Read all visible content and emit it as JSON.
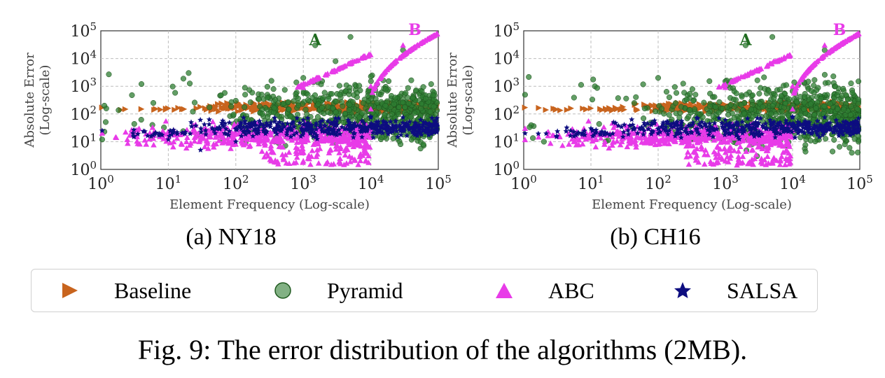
{
  "chart_data": [
    {
      "type": "scatter",
      "panel_caption": "(a) NY18",
      "xlabel": "Element Frequency (Log-scale)",
      "ylabel_line1": "Absolute Error",
      "ylabel_line2": "(Log-scale)",
      "xscale": "log",
      "yscale": "log",
      "xlim": [
        1,
        100000
      ],
      "ylim": [
        1,
        100000
      ],
      "xticks": [
        "10^0",
        "10^1",
        "10^2",
        "10^3",
        "10^4",
        "10^5"
      ],
      "yticks": [
        "10^0",
        "10^1",
        "10^2",
        "10^3",
        "10^4",
        "10^5"
      ],
      "grid": true,
      "annotations": [
        {
          "text": "A",
          "x": 1500,
          "y": 30000,
          "color": "#1f6b1f"
        },
        {
          "text": "B",
          "x": 45000,
          "y": 70000,
          "color": "#e83be8"
        }
      ],
      "series": [
        {
          "name": "Baseline",
          "points": [
            [
              1,
              170
            ],
            [
              2,
              140
            ],
            [
              4,
              150
            ],
            [
              10,
              160
            ],
            [
              30,
              180
            ],
            [
              100,
              170
            ],
            [
              300,
              190
            ],
            [
              1000,
              200
            ],
            [
              3000,
              210
            ],
            [
              10000,
              220
            ],
            [
              30000,
              200
            ],
            [
              90000,
              210
            ]
          ]
        },
        {
          "name": "Pyramid",
          "points": [
            [
              1,
              12
            ],
            [
              4,
              1200
            ],
            [
              6,
              250
            ],
            [
              20,
              3000
            ],
            [
              100,
              300
            ],
            [
              1000,
              2000
            ],
            [
              1500,
              30000
            ],
            [
              3000,
              8000
            ],
            [
              5000,
              60000
            ],
            [
              10000,
              200
            ],
            [
              30000,
              20000
            ],
            [
              60000,
              8
            ]
          ]
        },
        {
          "name": "ABC",
          "points": [
            [
              1,
              20
            ],
            [
              10,
              15
            ],
            [
              100,
              8
            ],
            [
              300,
              3
            ],
            [
              1000,
              2
            ],
            [
              1000,
              900
            ],
            [
              3000,
              3500
            ],
            [
              9000,
              12000
            ],
            [
              10000,
              150
            ],
            [
              10000,
              1000
            ],
            [
              30000,
              30000
            ],
            [
              100000,
              80000
            ]
          ]
        },
        {
          "name": "SALSA",
          "points": [
            [
              1,
              25
            ],
            [
              3,
              20
            ],
            [
              10,
              12
            ],
            [
              30,
              5
            ],
            [
              100,
              10
            ],
            [
              300,
              40
            ],
            [
              1000,
              60
            ],
            [
              3000,
              70
            ],
            [
              10000,
              80
            ],
            [
              30000,
              75
            ],
            [
              100000,
              70
            ]
          ]
        }
      ]
    },
    {
      "type": "scatter",
      "panel_caption": "(b) CH16",
      "xlabel": "Element Frequency (Log-scale)",
      "ylabel_line1": "Absolute Error",
      "ylabel_line2": "(Log-scale)",
      "xscale": "log",
      "yscale": "log",
      "xlim": [
        1,
        100000
      ],
      "ylim": [
        1,
        100000
      ],
      "xticks": [
        "10^0",
        "10^1",
        "10^2",
        "10^3",
        "10^4",
        "10^5"
      ],
      "yticks": [
        "10^0",
        "10^1",
        "10^2",
        "10^3",
        "10^4",
        "10^5"
      ],
      "grid": true,
      "annotations": [
        {
          "text": "A",
          "x": 2000,
          "y": 30000,
          "color": "#1f6b1f"
        },
        {
          "text": "B",
          "x": 50000,
          "y": 70000,
          "color": "#e83be8"
        }
      ],
      "series": [
        {
          "name": "Baseline",
          "points": [
            [
              1,
              170
            ],
            [
              3,
              150
            ],
            [
              10,
              160
            ],
            [
              30,
              180
            ],
            [
              100,
              170
            ],
            [
              300,
              190
            ],
            [
              1000,
              200
            ],
            [
              3000,
              210
            ],
            [
              10000,
              220
            ],
            [
              30000,
              200
            ],
            [
              90000,
              210
            ]
          ]
        },
        {
          "name": "Pyramid",
          "points": [
            [
              2,
              10
            ],
            [
              100,
              2000
            ],
            [
              300,
              12
            ],
            [
              1000,
              1500
            ],
            [
              2000,
              30000
            ],
            [
              5000,
              60000
            ],
            [
              10000,
              200
            ],
            [
              30000,
              20000
            ],
            [
              60000,
              8
            ]
          ]
        },
        {
          "name": "ABC",
          "points": [
            [
              1,
              30
            ],
            [
              10,
              15
            ],
            [
              100,
              8
            ],
            [
              300,
              3
            ],
            [
              1000,
              2
            ],
            [
              1000,
              900
            ],
            [
              3000,
              3500
            ],
            [
              9000,
              12000
            ],
            [
              10000,
              150
            ],
            [
              10000,
              1000
            ],
            [
              30000,
              30000
            ],
            [
              100000,
              80000
            ]
          ]
        },
        {
          "name": "SALSA",
          "points": [
            [
              1,
              20
            ],
            [
              5,
              25
            ],
            [
              10,
              30
            ],
            [
              30,
              15
            ],
            [
              100,
              20
            ],
            [
              300,
              40
            ],
            [
              1000,
              60
            ],
            [
              3000,
              70
            ],
            [
              10000,
              80
            ],
            [
              30000,
              75
            ],
            [
              100000,
              70
            ]
          ]
        }
      ]
    }
  ],
  "legend": [
    {
      "label": "Baseline",
      "marker": "triangle-right",
      "color": "#c8641e"
    },
    {
      "label": "Pyramid",
      "marker": "circle",
      "color": "#2e7d32"
    },
    {
      "label": "ABC",
      "marker": "triangle-up",
      "color": "#e83be8"
    },
    {
      "label": "SALSA",
      "marker": "star",
      "color": "#0d0d80"
    }
  ],
  "caption": "Fig. 9: The error distribution of the algorithms (2MB)."
}
